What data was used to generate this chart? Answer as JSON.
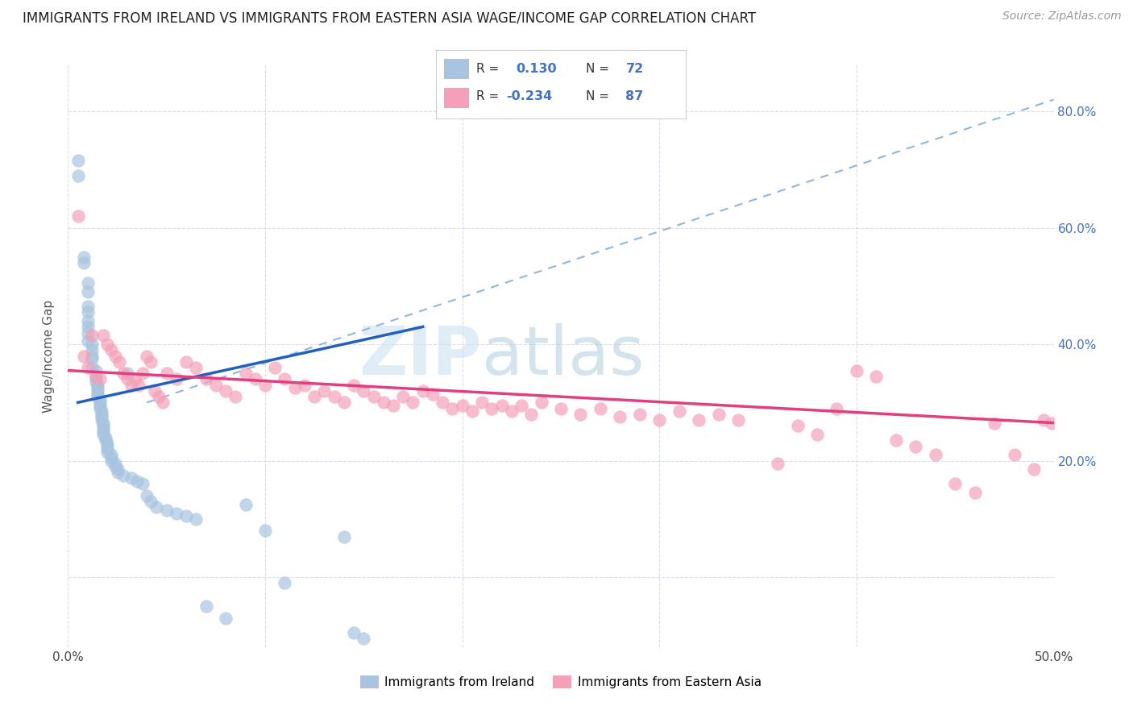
{
  "title": "IMMIGRANTS FROM IRELAND VS IMMIGRANTS FROM EASTERN ASIA WAGE/INCOME GAP CORRELATION CHART",
  "source": "Source: ZipAtlas.com",
  "ylabel": "Wage/Income Gap",
  "xlim": [
    0.0,
    0.5
  ],
  "ylim": [
    -0.12,
    0.88
  ],
  "blue_R": 0.13,
  "blue_N": 72,
  "pink_R": -0.234,
  "pink_N": 87,
  "blue_color": "#a8c4e0",
  "pink_color": "#f4a0b8",
  "blue_line_color": "#2060c0",
  "pink_line_color": "#e04080",
  "diagonal_color": "#90b8d8",
  "legend_text_color": "#4472C4",
  "blue_scatter_x": [
    0.005,
    0.005,
    0.008,
    0.008,
    0.01,
    0.01,
    0.01,
    0.01,
    0.01,
    0.01,
    0.01,
    0.01,
    0.012,
    0.012,
    0.012,
    0.012,
    0.012,
    0.014,
    0.014,
    0.014,
    0.014,
    0.015,
    0.015,
    0.015,
    0.015,
    0.015,
    0.016,
    0.016,
    0.016,
    0.016,
    0.017,
    0.017,
    0.017,
    0.017,
    0.018,
    0.018,
    0.018,
    0.018,
    0.018,
    0.019,
    0.019,
    0.02,
    0.02,
    0.02,
    0.02,
    0.022,
    0.022,
    0.022,
    0.024,
    0.024,
    0.025,
    0.025,
    0.028,
    0.03,
    0.032,
    0.035,
    0.038,
    0.04,
    0.042,
    0.045,
    0.05,
    0.055,
    0.06,
    0.065,
    0.07,
    0.08,
    0.09,
    0.1,
    0.11,
    0.14,
    0.145,
    0.15
  ],
  "blue_scatter_y": [
    0.715,
    0.69,
    0.55,
    0.54,
    0.505,
    0.49,
    0.465,
    0.455,
    0.44,
    0.43,
    0.42,
    0.405,
    0.4,
    0.39,
    0.38,
    0.375,
    0.36,
    0.355,
    0.345,
    0.34,
    0.335,
    0.33,
    0.325,
    0.32,
    0.315,
    0.31,
    0.305,
    0.3,
    0.295,
    0.29,
    0.285,
    0.28,
    0.275,
    0.27,
    0.265,
    0.26,
    0.255,
    0.25,
    0.245,
    0.24,
    0.235,
    0.23,
    0.225,
    0.22,
    0.215,
    0.21,
    0.205,
    0.2,
    0.195,
    0.19,
    0.185,
    0.18,
    0.175,
    0.35,
    0.17,
    0.165,
    0.16,
    0.14,
    0.13,
    0.12,
    0.115,
    0.11,
    0.105,
    0.1,
    -0.05,
    -0.07,
    0.125,
    0.08,
    -0.01,
    0.07,
    -0.095,
    -0.105
  ],
  "pink_scatter_x": [
    0.005,
    0.008,
    0.01,
    0.012,
    0.014,
    0.016,
    0.018,
    0.02,
    0.022,
    0.024,
    0.026,
    0.028,
    0.03,
    0.032,
    0.034,
    0.036,
    0.038,
    0.04,
    0.042,
    0.044,
    0.046,
    0.048,
    0.05,
    0.055,
    0.06,
    0.065,
    0.07,
    0.075,
    0.08,
    0.085,
    0.09,
    0.095,
    0.1,
    0.105,
    0.11,
    0.115,
    0.12,
    0.125,
    0.13,
    0.135,
    0.14,
    0.145,
    0.15,
    0.155,
    0.16,
    0.165,
    0.17,
    0.175,
    0.18,
    0.185,
    0.19,
    0.195,
    0.2,
    0.205,
    0.21,
    0.215,
    0.22,
    0.225,
    0.23,
    0.235,
    0.24,
    0.25,
    0.26,
    0.27,
    0.28,
    0.29,
    0.3,
    0.31,
    0.32,
    0.33,
    0.34,
    0.36,
    0.37,
    0.38,
    0.39,
    0.4,
    0.41,
    0.42,
    0.43,
    0.44,
    0.45,
    0.46,
    0.47,
    0.48,
    0.49,
    0.495,
    0.499
  ],
  "pink_scatter_y": [
    0.62,
    0.38,
    0.36,
    0.415,
    0.345,
    0.34,
    0.415,
    0.4,
    0.39,
    0.38,
    0.37,
    0.35,
    0.34,
    0.33,
    0.34,
    0.33,
    0.35,
    0.38,
    0.37,
    0.32,
    0.31,
    0.3,
    0.35,
    0.34,
    0.37,
    0.36,
    0.34,
    0.33,
    0.32,
    0.31,
    0.35,
    0.34,
    0.33,
    0.36,
    0.34,
    0.325,
    0.33,
    0.31,
    0.32,
    0.31,
    0.3,
    0.33,
    0.32,
    0.31,
    0.3,
    0.295,
    0.31,
    0.3,
    0.32,
    0.315,
    0.3,
    0.29,
    0.295,
    0.285,
    0.3,
    0.29,
    0.295,
    0.285,
    0.295,
    0.28,
    0.3,
    0.29,
    0.28,
    0.29,
    0.275,
    0.28,
    0.27,
    0.285,
    0.27,
    0.28,
    0.27,
    0.195,
    0.26,
    0.245,
    0.29,
    0.355,
    0.345,
    0.235,
    0.225,
    0.21,
    0.16,
    0.145,
    0.265,
    0.21,
    0.185,
    0.27,
    0.265
  ]
}
